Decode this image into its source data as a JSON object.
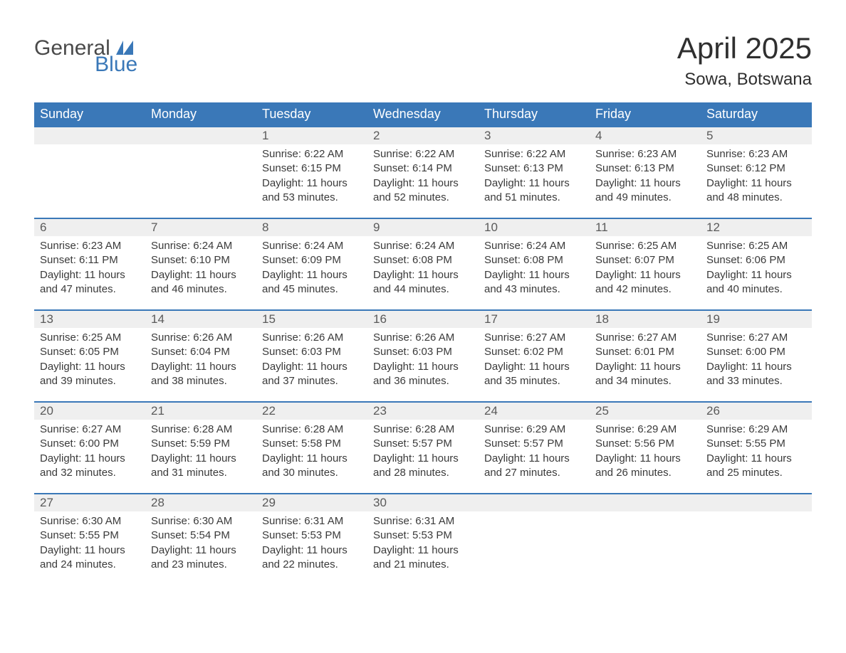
{
  "logo": {
    "general": "General",
    "blue": "Blue"
  },
  "title": "April 2025",
  "location": "Sowa, Botswana",
  "colors": {
    "header_bg": "#3a78b8",
    "header_text": "#ffffff",
    "daynum_bg": "#efefef",
    "row_border": "#3a78b8",
    "body_text": "#3a3a3a",
    "page_bg": "#ffffff",
    "logo_gray": "#4a4a4a",
    "logo_blue": "#3a78b8"
  },
  "typography": {
    "title_fontsize": 42,
    "location_fontsize": 24,
    "header_fontsize": 18,
    "daynum_fontsize": 17,
    "cell_fontsize": 15
  },
  "weekdays": [
    "Sunday",
    "Monday",
    "Tuesday",
    "Wednesday",
    "Thursday",
    "Friday",
    "Saturday"
  ],
  "weeks": [
    [
      null,
      null,
      {
        "n": "1",
        "sr": "Sunrise: 6:22 AM",
        "ss": "Sunset: 6:15 PM",
        "d1": "Daylight: 11 hours",
        "d2": "and 53 minutes."
      },
      {
        "n": "2",
        "sr": "Sunrise: 6:22 AM",
        "ss": "Sunset: 6:14 PM",
        "d1": "Daylight: 11 hours",
        "d2": "and 52 minutes."
      },
      {
        "n": "3",
        "sr": "Sunrise: 6:22 AM",
        "ss": "Sunset: 6:13 PM",
        "d1": "Daylight: 11 hours",
        "d2": "and 51 minutes."
      },
      {
        "n": "4",
        "sr": "Sunrise: 6:23 AM",
        "ss": "Sunset: 6:13 PM",
        "d1": "Daylight: 11 hours",
        "d2": "and 49 minutes."
      },
      {
        "n": "5",
        "sr": "Sunrise: 6:23 AM",
        "ss": "Sunset: 6:12 PM",
        "d1": "Daylight: 11 hours",
        "d2": "and 48 minutes."
      }
    ],
    [
      {
        "n": "6",
        "sr": "Sunrise: 6:23 AM",
        "ss": "Sunset: 6:11 PM",
        "d1": "Daylight: 11 hours",
        "d2": "and 47 minutes."
      },
      {
        "n": "7",
        "sr": "Sunrise: 6:24 AM",
        "ss": "Sunset: 6:10 PM",
        "d1": "Daylight: 11 hours",
        "d2": "and 46 minutes."
      },
      {
        "n": "8",
        "sr": "Sunrise: 6:24 AM",
        "ss": "Sunset: 6:09 PM",
        "d1": "Daylight: 11 hours",
        "d2": "and 45 minutes."
      },
      {
        "n": "9",
        "sr": "Sunrise: 6:24 AM",
        "ss": "Sunset: 6:08 PM",
        "d1": "Daylight: 11 hours",
        "d2": "and 44 minutes."
      },
      {
        "n": "10",
        "sr": "Sunrise: 6:24 AM",
        "ss": "Sunset: 6:08 PM",
        "d1": "Daylight: 11 hours",
        "d2": "and 43 minutes."
      },
      {
        "n": "11",
        "sr": "Sunrise: 6:25 AM",
        "ss": "Sunset: 6:07 PM",
        "d1": "Daylight: 11 hours",
        "d2": "and 42 minutes."
      },
      {
        "n": "12",
        "sr": "Sunrise: 6:25 AM",
        "ss": "Sunset: 6:06 PM",
        "d1": "Daylight: 11 hours",
        "d2": "and 40 minutes."
      }
    ],
    [
      {
        "n": "13",
        "sr": "Sunrise: 6:25 AM",
        "ss": "Sunset: 6:05 PM",
        "d1": "Daylight: 11 hours",
        "d2": "and 39 minutes."
      },
      {
        "n": "14",
        "sr": "Sunrise: 6:26 AM",
        "ss": "Sunset: 6:04 PM",
        "d1": "Daylight: 11 hours",
        "d2": "and 38 minutes."
      },
      {
        "n": "15",
        "sr": "Sunrise: 6:26 AM",
        "ss": "Sunset: 6:03 PM",
        "d1": "Daylight: 11 hours",
        "d2": "and 37 minutes."
      },
      {
        "n": "16",
        "sr": "Sunrise: 6:26 AM",
        "ss": "Sunset: 6:03 PM",
        "d1": "Daylight: 11 hours",
        "d2": "and 36 minutes."
      },
      {
        "n": "17",
        "sr": "Sunrise: 6:27 AM",
        "ss": "Sunset: 6:02 PM",
        "d1": "Daylight: 11 hours",
        "d2": "and 35 minutes."
      },
      {
        "n": "18",
        "sr": "Sunrise: 6:27 AM",
        "ss": "Sunset: 6:01 PM",
        "d1": "Daylight: 11 hours",
        "d2": "and 34 minutes."
      },
      {
        "n": "19",
        "sr": "Sunrise: 6:27 AM",
        "ss": "Sunset: 6:00 PM",
        "d1": "Daylight: 11 hours",
        "d2": "and 33 minutes."
      }
    ],
    [
      {
        "n": "20",
        "sr": "Sunrise: 6:27 AM",
        "ss": "Sunset: 6:00 PM",
        "d1": "Daylight: 11 hours",
        "d2": "and 32 minutes."
      },
      {
        "n": "21",
        "sr": "Sunrise: 6:28 AM",
        "ss": "Sunset: 5:59 PM",
        "d1": "Daylight: 11 hours",
        "d2": "and 31 minutes."
      },
      {
        "n": "22",
        "sr": "Sunrise: 6:28 AM",
        "ss": "Sunset: 5:58 PM",
        "d1": "Daylight: 11 hours",
        "d2": "and 30 minutes."
      },
      {
        "n": "23",
        "sr": "Sunrise: 6:28 AM",
        "ss": "Sunset: 5:57 PM",
        "d1": "Daylight: 11 hours",
        "d2": "and 28 minutes."
      },
      {
        "n": "24",
        "sr": "Sunrise: 6:29 AM",
        "ss": "Sunset: 5:57 PM",
        "d1": "Daylight: 11 hours",
        "d2": "and 27 minutes."
      },
      {
        "n": "25",
        "sr": "Sunrise: 6:29 AM",
        "ss": "Sunset: 5:56 PM",
        "d1": "Daylight: 11 hours",
        "d2": "and 26 minutes."
      },
      {
        "n": "26",
        "sr": "Sunrise: 6:29 AM",
        "ss": "Sunset: 5:55 PM",
        "d1": "Daylight: 11 hours",
        "d2": "and 25 minutes."
      }
    ],
    [
      {
        "n": "27",
        "sr": "Sunrise: 6:30 AM",
        "ss": "Sunset: 5:55 PM",
        "d1": "Daylight: 11 hours",
        "d2": "and 24 minutes."
      },
      {
        "n": "28",
        "sr": "Sunrise: 6:30 AM",
        "ss": "Sunset: 5:54 PM",
        "d1": "Daylight: 11 hours",
        "d2": "and 23 minutes."
      },
      {
        "n": "29",
        "sr": "Sunrise: 6:31 AM",
        "ss": "Sunset: 5:53 PM",
        "d1": "Daylight: 11 hours",
        "d2": "and 22 minutes."
      },
      {
        "n": "30",
        "sr": "Sunrise: 6:31 AM",
        "ss": "Sunset: 5:53 PM",
        "d1": "Daylight: 11 hours",
        "d2": "and 21 minutes."
      },
      null,
      null,
      null
    ]
  ]
}
